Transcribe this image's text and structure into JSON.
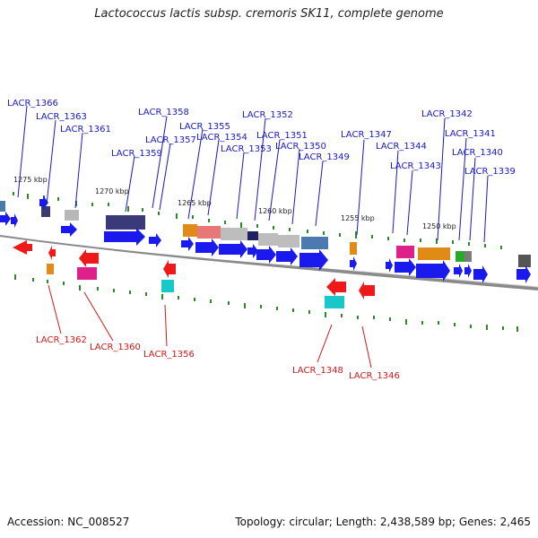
{
  "title": "Lactococcus lactis subsp. cremoris SK11, complete genome",
  "accession_text": "Accession: NC_008527",
  "summary_text": "Topology: circular; Length: 2,438,589 bp; Genes: 2,465",
  "colors": {
    "top_label": "#1818c8",
    "bottom_label": "#d01818",
    "backbone": "#8a8a8a",
    "tick": "#2a8a2a",
    "gene_arrow": "#1a1aee"
  },
  "scale": {
    "ticks": [
      "1275 kbp",
      "1270 kbp",
      "1265 kbp",
      "1260 kbp",
      "1255 kbp",
      "1250 kbp"
    ]
  },
  "top_labels": [
    "LACR_1366",
    "LACR_1363",
    "LACR_1361",
    "LACR_1358",
    "LACR_1357",
    "LACR_1359",
    "LACR_1355",
    "LACR_1354",
    "LACR_1353",
    "LACR_1352",
    "LACR_1351",
    "LACR_1350",
    "LACR_1349",
    "LACR_1347",
    "LACR_1344",
    "LACR_1343",
    "LACR_1342",
    "LACR_1341",
    "LACR_1340",
    "LACR_1339"
  ],
  "bottom_labels": [
    "LACR_1362",
    "LACR_1360",
    "LACR_1356",
    "LACR_1348",
    "LACR_1346"
  ]
}
